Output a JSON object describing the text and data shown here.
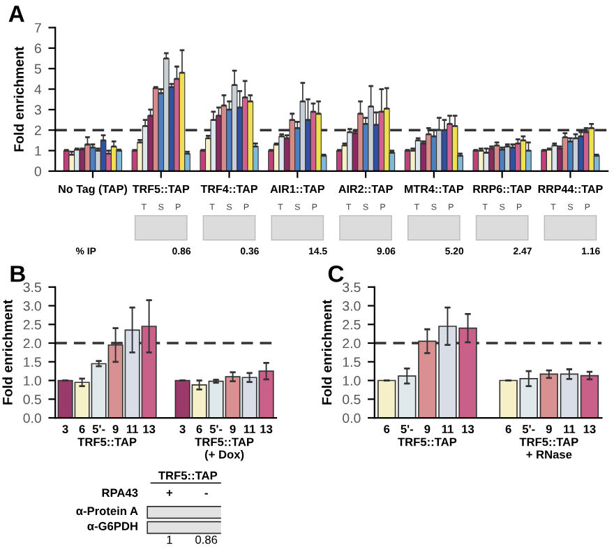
{
  "chart_data": [
    {
      "type": "bar",
      "title": "A",
      "ylabel": "Fold enrichment",
      "categories": [
        "No Tag (TAP)",
        "TRF5::TAP",
        "TRF4::TAP",
        "AIR1::TAP",
        "AIR2::TAP",
        "MTR4::TAP",
        "RRP6::TAP",
        "RRP44::TAP"
      ],
      "series": [
        {
          "color": "#c0407a",
          "values": [
            1.0,
            1.0,
            1.0,
            1.0,
            1.0,
            1.0,
            1.0,
            1.0
          ],
          "errors": [
            0.03,
            0.03,
            0.03,
            0.03,
            0.03,
            0.03,
            0.03,
            0.03
          ]
        },
        {
          "color": "#f5f0c8",
          "values": [
            0.8,
            1.4,
            1.6,
            1.3,
            1.25,
            1.0,
            1.0,
            1.05
          ],
          "errors": [
            0.15,
            0.12,
            0.12,
            0.05,
            0.1,
            0.1,
            0.1,
            0.05
          ]
        },
        {
          "color": "#dde6ec",
          "values": [
            1.05,
            2.2,
            2.5,
            1.7,
            1.9,
            1.5,
            0.9,
            1.25
          ],
          "errors": [
            0.05,
            0.3,
            0.4,
            0.1,
            0.15,
            0.1,
            0.2,
            0.1
          ]
        },
        {
          "color": "#8a2a60",
          "values": [
            1.05,
            2.7,
            2.7,
            1.6,
            1.85,
            1.35,
            1.1,
            1.1
          ],
          "errors": [
            0.05,
            0.3,
            0.4,
            0.15,
            0.1,
            0.1,
            0.1,
            0.1
          ]
        },
        {
          "color": "#d88a8a",
          "values": [
            1.3,
            4.05,
            3.2,
            2.5,
            2.8,
            1.8,
            1.25,
            1.65
          ],
          "errors": [
            0.35,
            0.05,
            0.5,
            0.3,
            0.6,
            0.3,
            0.15,
            0.2
          ]
        },
        {
          "color": "#4a80c0",
          "values": [
            1.15,
            3.8,
            3.0,
            2.1,
            2.3,
            1.7,
            1.05,
            1.45
          ],
          "errors": [
            0.15,
            0.2,
            0.4,
            0.3,
            0.3,
            0.3,
            0.1,
            0.15
          ]
        },
        {
          "color": "#c8cfd6",
          "values": [
            1.0,
            5.5,
            4.2,
            3.4,
            3.15,
            2.0,
            1.2,
            1.6
          ],
          "errors": [
            0.1,
            0.25,
            0.7,
            0.9,
            1.0,
            0.6,
            0.1,
            0.2
          ]
        },
        {
          "color": "#3050a0",
          "values": [
            1.5,
            4.1,
            3.1,
            2.5,
            2.26,
            2.0,
            1.15,
            1.7
          ],
          "errors": [
            0.25,
            0.15,
            0.8,
            1.0,
            0.6,
            0.5,
            0.15,
            0.2
          ]
        },
        {
          "color": "#d06090",
          "values": [
            0.85,
            4.5,
            3.6,
            2.9,
            2.9,
            2.3,
            1.35,
            1.9
          ],
          "errors": [
            0.15,
            0.6,
            0.8,
            0.4,
            1.1,
            0.4,
            0.2,
            0.2
          ]
        },
        {
          "color": "#f0e050",
          "values": [
            1.2,
            4.8,
            3.4,
            2.8,
            3.05,
            2.2,
            1.5,
            2.1
          ],
          "errors": [
            0.25,
            1.1,
            0.3,
            0.6,
            1.0,
            0.5,
            0.2,
            0.2
          ]
        },
        {
          "color": "#80b8d8",
          "values": [
            1.0,
            0.85,
            1.2,
            0.75,
            0.9,
            0.75,
            1.0,
            0.75
          ],
          "errors": [
            0.05,
            0.1,
            0.15,
            0.05,
            0.1,
            0.1,
            0.4,
            0.05
          ]
        }
      ],
      "ylim": [
        0,
        7
      ],
      "yticks": [
        0,
        1,
        2,
        3,
        4,
        5,
        6,
        7
      ],
      "ref_lines": [
        {
          "axis": "y",
          "value": 2,
          "line_style": "dashed",
          "color": "#333333"
        }
      ],
      "annotations": [
        "% IP",
        "0.86",
        "0.36",
        "14.5",
        "9.06",
        "5.20",
        "2.47",
        "1.16",
        "T",
        "S",
        "P",
        "T",
        "S",
        "P",
        "T",
        "S",
        "P",
        "T",
        "S",
        "P",
        "T",
        "S",
        "P",
        "T",
        "S",
        "P",
        "T",
        "S",
        "P"
      ]
    },
    {
      "type": "bar",
      "title": "B",
      "ylabel": "Fold enrichment",
      "categories": [
        "3",
        "6",
        "5'-",
        "9",
        "11",
        "13",
        null,
        "3",
        "6",
        "5'-",
        "9",
        "11",
        "13"
      ],
      "values": [
        1.0,
        0.95,
        1.45,
        1.95,
        2.35,
        2.45,
        null,
        1.0,
        0.88,
        0.98,
        1.1,
        1.08,
        1.25
      ],
      "errors": [
        null,
        0.1,
        0.07,
        0.45,
        0.6,
        0.7,
        null,
        null,
        0.12,
        0.04,
        0.12,
        0.12,
        0.22
      ],
      "colors": [
        "#9a3a6a",
        "#f5f0c8",
        "#dfe8ea",
        "#d89090",
        "#d8dde8",
        "#c8608a",
        "#ffffff",
        "#9a3a6a",
        "#f5f0c8",
        "#dfe8ea",
        "#d89090",
        "#d8dde8",
        "#c8608a"
      ],
      "ylim": [
        0,
        3.5
      ],
      "yticks": [
        {
          "value": 0,
          "label": "0.0"
        },
        0.5,
        {
          "value": 1,
          "label": "1.0"
        },
        1.5,
        {
          "value": 2,
          "label": "2.0"
        },
        2.5,
        {
          "value": 3,
          "label": "3.0"
        },
        3.5
      ],
      "ref_lines": [
        {
          "axis": "y",
          "value": 2,
          "line_style": "dashed",
          "color": "#333333"
        }
      ],
      "annotations": [
        "TRF5::TAP",
        "TRF5::TAP\n(+ Dox)"
      ]
    },
    {
      "type": "bar",
      "title": "C",
      "ylabel": "Fold enrichment",
      "categories": [
        "6",
        "5'-",
        "9",
        "11",
        "13",
        null,
        "6",
        "5'-",
        "9",
        "11",
        "13"
      ],
      "values": [
        1.0,
        1.12,
        2.05,
        2.45,
        2.4,
        null,
        1.0,
        1.05,
        1.17,
        1.17,
        1.13
      ],
      "errors": [
        null,
        0.2,
        0.32,
        0.5,
        0.38,
        null,
        null,
        0.2,
        0.1,
        0.13,
        0.1
      ],
      "colors": [
        "#f5f0c8",
        "#dfe8ea",
        "#d89090",
        "#d8dde8",
        "#c8608a",
        "#ffffff",
        "#f5f0c8",
        "#dfe8ea",
        "#d89090",
        "#d8dde8",
        "#c8608a"
      ],
      "ylim": [
        0,
        3.5
      ],
      "yticks": [
        {
          "value": 0,
          "label": "0.0"
        },
        0.5,
        {
          "value": 1,
          "label": "1.0"
        },
        1.5,
        {
          "value": 2,
          "label": "2.0"
        },
        2.5,
        {
          "value": 3,
          "label": "3.0"
        },
        3.5
      ],
      "ref_lines": [
        {
          "axis": "y",
          "value": 2,
          "line_style": "dashed",
          "color": "#333333"
        }
      ],
      "annotations": [
        "TRF5::TAP",
        "TRF5::TAP\n+ RNase"
      ]
    },
    {
      "type": "other",
      "title": "TRF5::TAP",
      "annotations": [
        "RPA43",
        "+",
        "-",
        "α-Protein A",
        "α-G6PDH",
        "1",
        "0.86"
      ]
    }
  ]
}
